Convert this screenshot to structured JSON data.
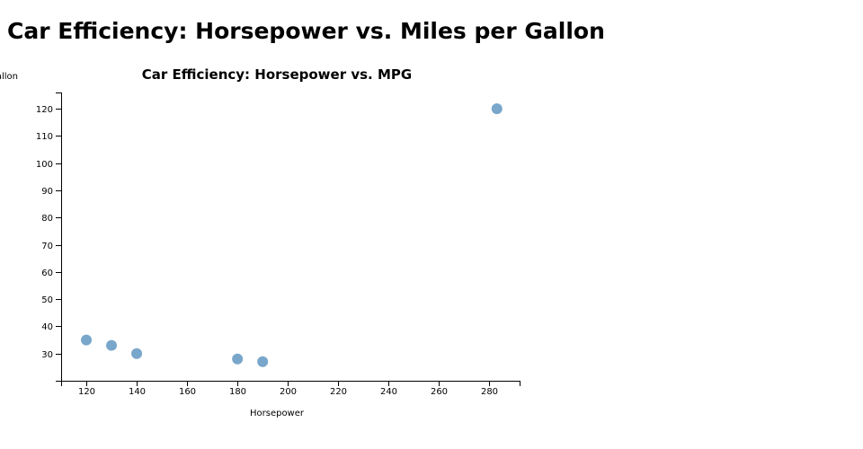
{
  "page": {
    "heading": "Car Efficiency: Horsepower vs. Miles per Gallon"
  },
  "chart_data": {
    "type": "scatter",
    "title": "Car Efficiency: Horsepower vs. MPG",
    "xlabel": "Horsepower",
    "ylabel": "Miles per Gallon",
    "xlim": [
      110,
      292
    ],
    "ylim": [
      20,
      126
    ],
    "x_ticks": [
      120,
      140,
      160,
      180,
      200,
      220,
      240,
      260,
      280
    ],
    "y_ticks": [
      30,
      40,
      50,
      60,
      70,
      80,
      90,
      100,
      110,
      120
    ],
    "point_color": "#79a6cb",
    "grid": false,
    "points": [
      {
        "x": 120,
        "y": 35
      },
      {
        "x": 130,
        "y": 33
      },
      {
        "x": 140,
        "y": 30
      },
      {
        "x": 180,
        "y": 28
      },
      {
        "x": 190,
        "y": 27
      },
      {
        "x": 283,
        "y": 120
      }
    ]
  }
}
